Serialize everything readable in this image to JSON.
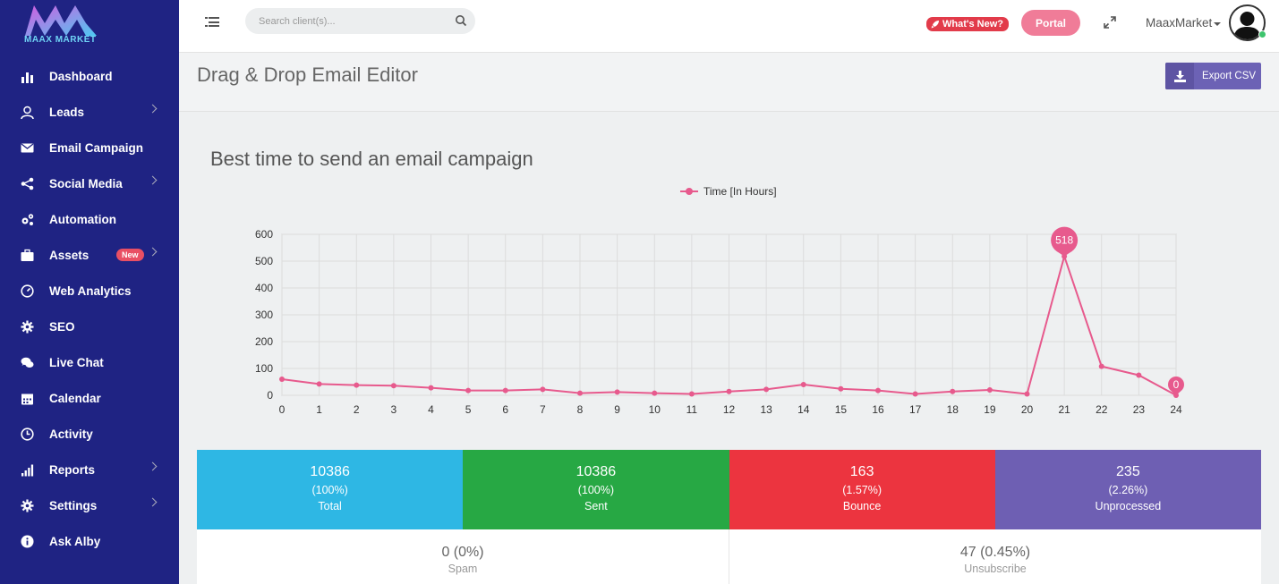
{
  "brand": {
    "logo_text": "MAAX MARKET"
  },
  "sidebar": {
    "items": [
      {
        "label": "Dashboard",
        "icon": "bar-chart-icon",
        "has_submenu": false
      },
      {
        "label": "Leads",
        "icon": "user-icon",
        "has_submenu": true
      },
      {
        "label": "Email Campaign",
        "icon": "envelope-icon",
        "has_submenu": false
      },
      {
        "label": "Social Media",
        "icon": "share-icon",
        "has_submenu": true
      },
      {
        "label": "Automation",
        "icon": "cogs-icon",
        "has_submenu": false
      },
      {
        "label": "Assets",
        "icon": "briefcase-icon",
        "has_submenu": true,
        "badge": "New"
      },
      {
        "label": "Web Analytics",
        "icon": "dashboard-icon",
        "has_submenu": false
      },
      {
        "label": "SEO",
        "icon": "gear-icon",
        "has_submenu": false
      },
      {
        "label": "Live Chat",
        "icon": "chat-icon",
        "has_submenu": false
      },
      {
        "label": "Calendar",
        "icon": "calendar-icon",
        "has_submenu": false
      },
      {
        "label": "Activity",
        "icon": "clock-icon",
        "has_submenu": false
      },
      {
        "label": "Reports",
        "icon": "signal-icon",
        "has_submenu": true
      },
      {
        "label": "Settings",
        "icon": "gear-icon",
        "has_submenu": true
      },
      {
        "label": "Ask Alby",
        "icon": "info-icon",
        "has_submenu": false
      }
    ]
  },
  "topbar": {
    "search_placeholder": "Search client(s)...",
    "whats_new": "What's New?",
    "portal": "Portal",
    "username": "MaaxMarket"
  },
  "page": {
    "title": "Drag & Drop Email Editor",
    "export_label": "Export CSV"
  },
  "chart_data": {
    "type": "line",
    "title": "Best time to send an email campaign",
    "legend": "Time [In Hours]",
    "x": [
      0,
      1,
      2,
      3,
      4,
      5,
      6,
      7,
      8,
      9,
      10,
      11,
      12,
      13,
      14,
      15,
      16,
      17,
      18,
      19,
      20,
      21,
      22,
      23,
      24
    ],
    "values": [
      60,
      42,
      38,
      36,
      28,
      18,
      18,
      22,
      8,
      12,
      8,
      5,
      14,
      22,
      40,
      24,
      18,
      5,
      14,
      20,
      5,
      518,
      108,
      75,
      0
    ],
    "ylim": [
      0,
      600
    ],
    "yticks": [
      0,
      100,
      200,
      300,
      400,
      500,
      600
    ],
    "highlighted": [
      {
        "x": 21,
        "label": "518"
      },
      {
        "x": 24,
        "label": "0"
      }
    ],
    "color": "#e75a8d",
    "grid": true
  },
  "stats": [
    {
      "value": "10386",
      "percent": "(100%)",
      "label": "Total",
      "color": "#2eb7e4"
    },
    {
      "value": "10386",
      "percent": "(100%)",
      "label": "Sent",
      "color": "#27a844"
    },
    {
      "value": "163",
      "percent": "(1.57%)",
      "label": "Bounce",
      "color": "#ec343f"
    },
    {
      "value": "235",
      "percent": "(2.26%)",
      "label": "Unprocessed",
      "color": "#6e5fb3"
    }
  ],
  "stats2": [
    {
      "value": "0 (0%)",
      "label": "Spam"
    },
    {
      "value": "47 (0.45%)",
      "label": "Unsubscribe"
    }
  ]
}
